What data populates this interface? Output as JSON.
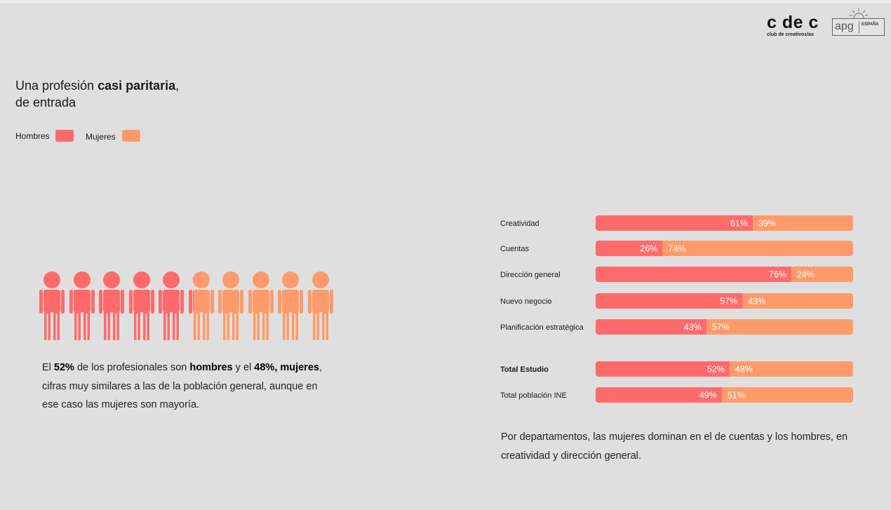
{
  "logos": {
    "cdec_text": "c de c",
    "cdec_subtitle": "club de creativos/as",
    "apg_text": "apg",
    "apg_region": "ESPAÑA"
  },
  "title": {
    "prefix": "Una profesión ",
    "bold": "casi paritaria",
    "suffix": ",",
    "line2": "de entrada"
  },
  "legend": {
    "hombres": "Hombres",
    "mujeres": "Mujeres"
  },
  "colors": {
    "hombres": "#ff6b6b",
    "mujeres": "#ff9b6a",
    "bg": "#dfdfdf"
  },
  "pictogram": {
    "total": 10,
    "men_share_pct": 52
  },
  "left_text": {
    "p1": "El ",
    "b1": "52%",
    "p2": " de los profesionales son ",
    "b2": "hombres",
    "p3": " y el ",
    "b3": "48%, mujeres",
    "p4": ", cifras muy similares a las de la población general, aunque en ese caso las mujeres son mayoría."
  },
  "chart_data": {
    "type": "bar",
    "orientation": "horizontal",
    "stacked": true,
    "percent": true,
    "categories": [
      "Creatividad",
      "Cuentas",
      "Dirección general",
      "Nuevo negocio",
      "Planificación estratégica",
      "Total Estudio",
      "Total población INE"
    ],
    "bold_categories": [
      "Total Estudio"
    ],
    "series": [
      {
        "name": "Hombres",
        "values": [
          61,
          26,
          76,
          57,
          43,
          52,
          49
        ]
      },
      {
        "name": "Mujeres",
        "values": [
          39,
          74,
          24,
          43,
          57,
          48,
          51
        ]
      }
    ],
    "value_labels": {
      "Hombres": [
        "61%",
        "26%",
        "76%",
        "57%",
        "43%",
        "52%",
        "49%"
      ],
      "Mujeres": [
        "39%",
        "74%",
        "24%",
        "43%",
        "57%",
        "48%",
        "51%"
      ]
    },
    "xlim": [
      0,
      100
    ],
    "grid": false,
    "legend": "top-left"
  },
  "right_text": "Por departamentos, las mujeres dominan en el de cuentas y los hombres, en creatividad y dirección general."
}
